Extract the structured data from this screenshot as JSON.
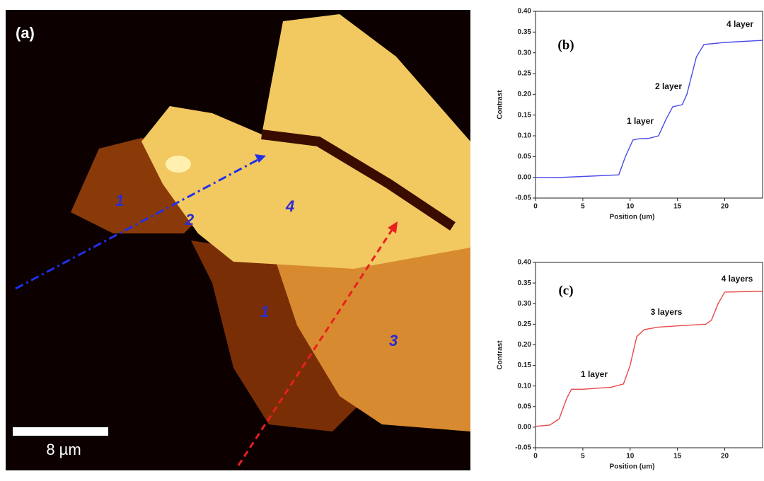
{
  "image_panel": {
    "panel_label": "(a)",
    "region_labels": [
      "1",
      "2",
      "4",
      "1",
      "3"
    ],
    "scale_bar": "8 µm"
  },
  "chart_data": [
    {
      "type": "line",
      "panel_label": "(b)",
      "xlabel": "Position (um)",
      "ylabel": "Contrast",
      "color": "#4a4ae8",
      "x": [
        0,
        2,
        5,
        8.8,
        9.5,
        10.3,
        11,
        12,
        13,
        13.8,
        14.5,
        15.5,
        16,
        17,
        17.8,
        20,
        24
      ],
      "values": [
        0.0,
        -0.001,
        0.002,
        0.006,
        0.05,
        0.09,
        0.093,
        0.094,
        0.1,
        0.14,
        0.17,
        0.175,
        0.2,
        0.29,
        0.32,
        0.325,
        0.33
      ],
      "xlim": [
        0,
        24
      ],
      "xticks": [
        0,
        5,
        10,
        15,
        20
      ],
      "ylim": [
        -0.05,
        0.4
      ],
      "yticks": [
        -0.05,
        {
          "value": 0,
          "label": "0.00"
        },
        0.05,
        {
          "value": 0.1,
          "label": "0.10"
        },
        0.15,
        {
          "value": 0.2,
          "label": "0.20"
        },
        0.25,
        {
          "value": 0.3,
          "label": "0.30"
        },
        0.35,
        {
          "value": 0.4,
          "label": "0.40"
        }
      ],
      "annotations": [
        "1 layer",
        "2 layer",
        "4 layer"
      ]
    },
    {
      "type": "line",
      "panel_label": "(c)",
      "xlabel": "Position (um)",
      "ylabel": "Contrast",
      "color": "#e84a4a",
      "x": [
        0,
        1.5,
        2.5,
        3.3,
        3.8,
        5,
        8,
        9.3,
        10,
        10.7,
        11.5,
        13,
        15,
        18,
        18.6,
        19.3,
        20,
        24
      ],
      "values": [
        0.002,
        0.005,
        0.02,
        0.07,
        0.092,
        0.092,
        0.097,
        0.105,
        0.15,
        0.22,
        0.237,
        0.243,
        0.246,
        0.25,
        0.26,
        0.3,
        0.328,
        0.33
      ],
      "xlim": [
        0,
        24
      ],
      "xticks": [
        0,
        5,
        10,
        15,
        20
      ],
      "ylim": [
        -0.05,
        0.4
      ],
      "yticks": [
        -0.05,
        {
          "value": 0,
          "label": "0.00"
        },
        0.05,
        {
          "value": 0.1,
          "label": "0.10"
        },
        0.15,
        {
          "value": 0.2,
          "label": "0.20"
        },
        0.25,
        {
          "value": 0.3,
          "label": "0.30"
        },
        0.35,
        {
          "value": 0.4,
          "label": "0.40"
        }
      ],
      "annotations": [
        "1 layer",
        "3 layers",
        "4 layers"
      ]
    }
  ]
}
